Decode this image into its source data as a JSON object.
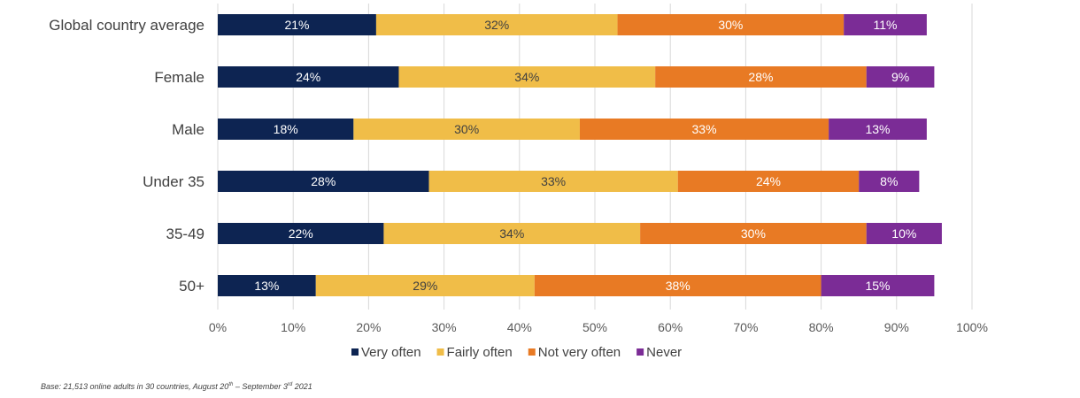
{
  "chart_data": {
    "type": "bar",
    "orientation": "horizontal",
    "stacked": true,
    "title": "",
    "categories": [
      "Global country average",
      "Female",
      "Male",
      "Under 35",
      "35-49",
      "50+"
    ],
    "series": [
      {
        "name": "Very often",
        "color": "#0d2452",
        "label_color": "#ffffff",
        "values": [
          21,
          24,
          18,
          28,
          22,
          13
        ]
      },
      {
        "name": "Fairly often",
        "color": "#f0bd48",
        "label_color": "#404040",
        "values": [
          32,
          34,
          30,
          33,
          34,
          29
        ]
      },
      {
        "name": "Not very often",
        "color": "#e87a24",
        "label_color": "#ffffff",
        "values": [
          30,
          28,
          33,
          24,
          30,
          38
        ]
      },
      {
        "name": "Never",
        "color": "#7b2c96",
        "label_color": "#ffffff",
        "values": [
          11,
          9,
          13,
          8,
          10,
          15
        ]
      }
    ],
    "data_label_format": "{v}%",
    "xlim": [
      0,
      100
    ],
    "xticks": [
      "0%",
      "10%",
      "20%",
      "30%",
      "40%",
      "50%",
      "60%",
      "70%",
      "80%",
      "90%",
      "100%"
    ],
    "xlabel": "",
    "ylabel": "",
    "grid": true,
    "legend_position": "bottom"
  },
  "footnote": {
    "text_before": "Base: 21,513 online adults in 30 countries, August 20",
    "sup1": "th",
    "text_middle": " – September 3",
    "sup2": "rd",
    "text_after": " 2021"
  }
}
